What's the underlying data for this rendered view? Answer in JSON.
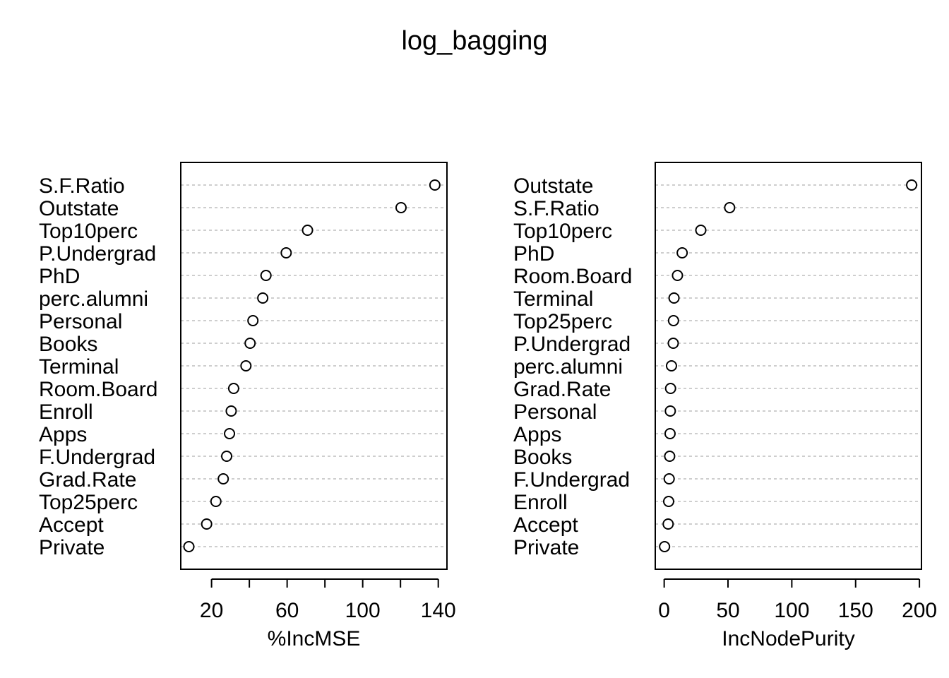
{
  "title": "log_bagging",
  "chart_data": [
    {
      "type": "scatter",
      "xlabel": "%IncMSE",
      "xlim": [
        3.7,
        144.6
      ],
      "ticks": [
        20,
        40,
        60,
        80,
        100,
        120,
        140
      ],
      "tick_labels": [
        "20",
        "",
        "60",
        "",
        "100",
        "",
        "140"
      ],
      "categories": [
        "S.F.Ratio",
        "Outstate",
        "Top10perc",
        "P.Undergrad",
        "PhD",
        "perc.alumni",
        "Personal",
        "Books",
        "Terminal",
        "Room.Board",
        "Enroll",
        "Apps",
        "F.Undergrad",
        "Grad.Rate",
        "Top25perc",
        "Accept",
        "Private"
      ],
      "values": [
        138.2,
        120.3,
        70.8,
        59.5,
        48.8,
        47.1,
        41.9,
        40.4,
        38.2,
        31.7,
        30.4,
        29.5,
        28.0,
        26.2,
        22.3,
        17.4,
        8.0
      ]
    },
    {
      "type": "scatter",
      "xlabel": "IncNodePurity",
      "xlim": [
        -7,
        201.6
      ],
      "ticks": [
        0,
        50,
        100,
        150,
        200
      ],
      "tick_labels": [
        "0",
        "50",
        "100",
        "150",
        "200"
      ],
      "categories": [
        "Outstate",
        "S.F.Ratio",
        "Top10perc",
        "PhD",
        "Room.Board",
        "Terminal",
        "Top25perc",
        "P.Undergrad",
        "perc.alumni",
        "Grad.Rate",
        "Personal",
        "Apps",
        "Books",
        "F.Undergrad",
        "Enroll",
        "Accept",
        "Private"
      ],
      "values": [
        193.9,
        51.3,
        28.7,
        14.1,
        10.4,
        7.7,
        7.3,
        7.1,
        5.7,
        5.0,
        4.8,
        4.6,
        4.3,
        3.9,
        3.5,
        3.1,
        0.3
      ]
    }
  ]
}
